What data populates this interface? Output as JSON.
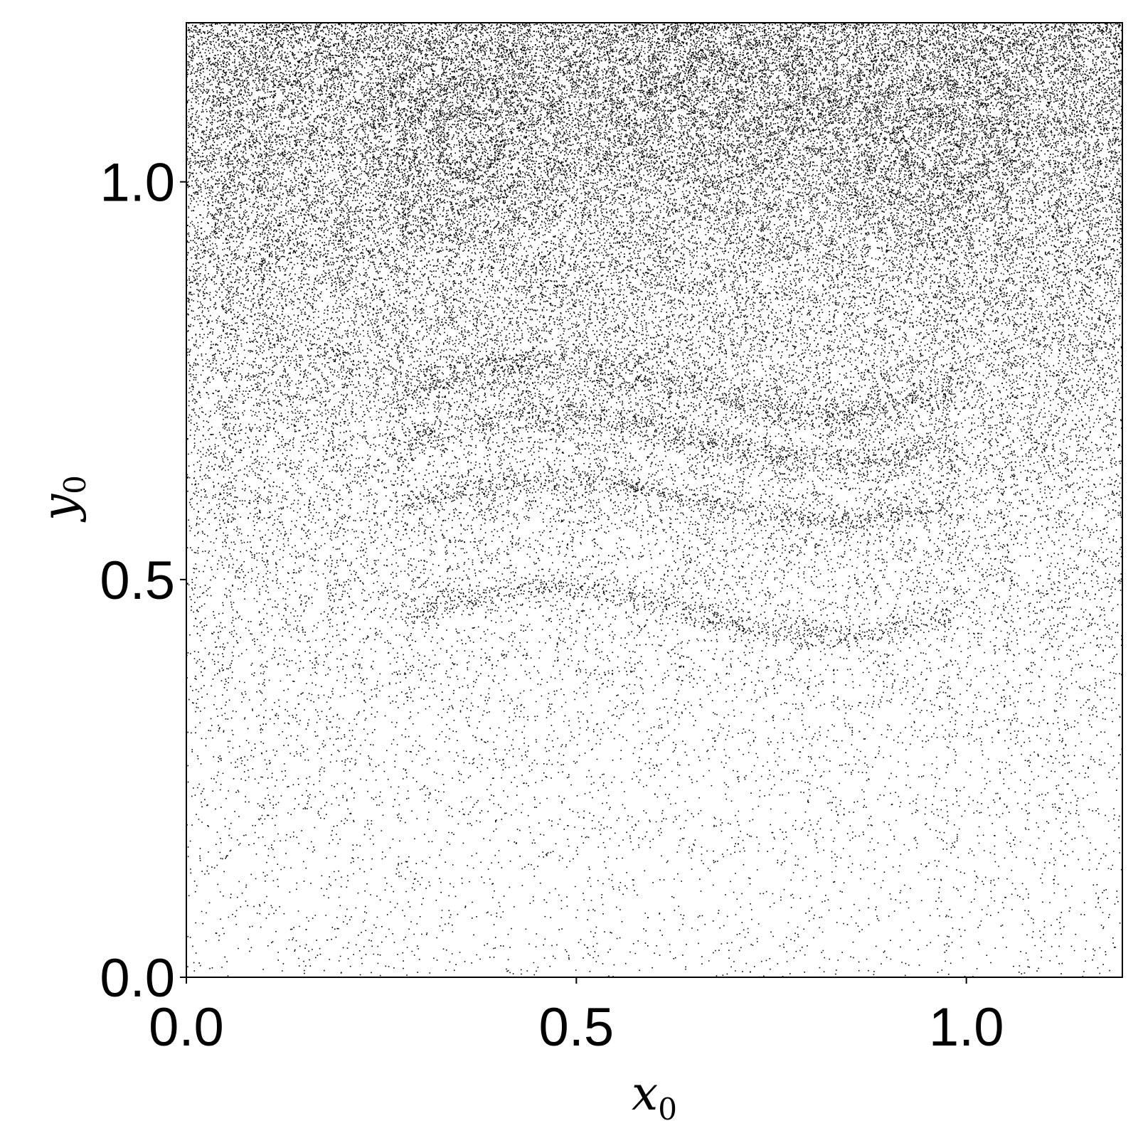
{
  "chart_data": {
    "type": "scatter",
    "title": "",
    "xlabel": {
      "base": "x",
      "subscript": "0"
    },
    "ylabel": {
      "base": "y",
      "subscript": "0"
    },
    "xlim": [
      0.0,
      1.2
    ],
    "ylim": [
      0.0,
      1.2
    ],
    "xticks": [
      {
        "value": 0.0,
        "label": "0.0"
      },
      {
        "value": 0.5,
        "label": "0.5"
      },
      {
        "value": 1.0,
        "label": "1.0"
      }
    ],
    "yticks": [
      {
        "value": 0.0,
        "label": "0.0"
      },
      {
        "value": 0.5,
        "label": "0.5"
      },
      {
        "value": 1.0,
        "label": "1.0"
      }
    ],
    "grid": false,
    "marker_color": "#000000",
    "description_of_density": "dense point cloud near top, sparse near bottom; vortex structures near top centered around x=0.35, 0.66, 0.95"
  }
}
